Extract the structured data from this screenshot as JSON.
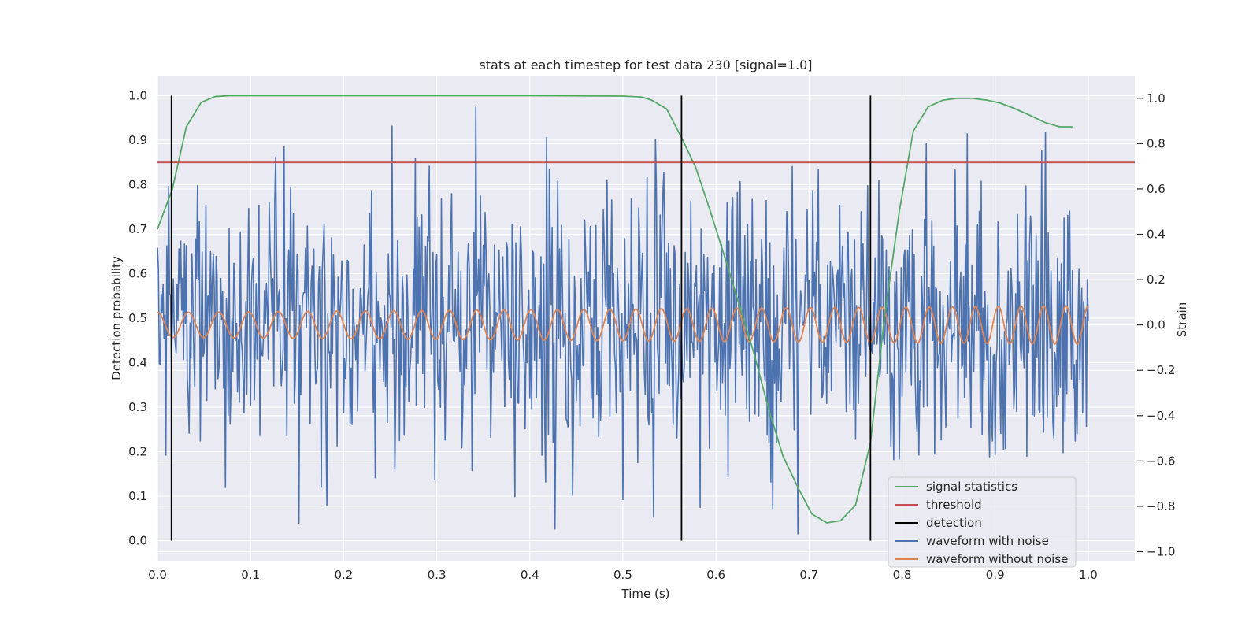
{
  "chart_data": {
    "type": "line",
    "title": "stats at each timestep for test data 230 [signal=1.0]",
    "xlabel": "Time (s)",
    "ylabel_left": "Detection probability",
    "ylabel_right": "Strain",
    "xlim": [
      0.0,
      1.05
    ],
    "ylim_left": [
      -0.045,
      1.045
    ],
    "ylim_right": [
      -1.04,
      1.1
    ],
    "x_ticks": [
      0.0,
      0.1,
      0.2,
      0.3,
      0.4,
      0.5,
      0.6,
      0.7,
      0.8,
      0.9,
      1.0
    ],
    "y_ticks_left": [
      0.0,
      0.1,
      0.2,
      0.3,
      0.4,
      0.5,
      0.6,
      0.7,
      0.8,
      0.9,
      1.0
    ],
    "y_ticks_right": [
      -1.0,
      -0.8,
      -0.6,
      -0.4,
      -0.2,
      0.0,
      0.2,
      0.4,
      0.6,
      0.8,
      1.0
    ],
    "y_tick_labels_right": [
      "−1.0",
      "−0.8",
      "−0.6",
      "−0.4",
      "−0.2",
      "0.0",
      "0.2",
      "0.4",
      "0.6",
      "0.8",
      "1.0"
    ],
    "grid": true,
    "legend_position": "lower-right",
    "series": [
      {
        "name": "signal statistics",
        "axis": "left",
        "color": "#55a868",
        "x": [
          0.0,
          0.016,
          0.031,
          0.047,
          0.062,
          0.078,
          0.2,
          0.3,
          0.4,
          0.5,
          0.52,
          0.531,
          0.547,
          0.562,
          0.578,
          0.594,
          0.609,
          0.625,
          0.641,
          0.656,
          0.672,
          0.688,
          0.703,
          0.719,
          0.734,
          0.75,
          0.766,
          0.781,
          0.797,
          0.812,
          0.828,
          0.844,
          0.859,
          0.875,
          0.891,
          0.906,
          0.922,
          0.938,
          0.953,
          0.969,
          0.984
        ],
        "values": [
          0.7,
          0.79,
          0.93,
          0.985,
          0.998,
          1.0,
          1.0,
          1.0,
          1.0,
          0.999,
          0.997,
          0.99,
          0.97,
          0.91,
          0.84,
          0.74,
          0.64,
          0.53,
          0.42,
          0.3,
          0.19,
          0.12,
          0.06,
          0.04,
          0.045,
          0.08,
          0.22,
          0.5,
          0.74,
          0.92,
          0.975,
          0.99,
          0.994,
          0.994,
          0.99,
          0.983,
          0.97,
          0.955,
          0.94,
          0.93,
          0.93
        ]
      },
      {
        "name": "threshold",
        "axis": "left",
        "color": "#c44e52",
        "x": [
          0.0,
          1.05
        ],
        "values": [
          0.85,
          0.85
        ]
      },
      {
        "name": "detection",
        "axis": "left",
        "color": "#000000",
        "x": [
          0.015,
          0.563,
          0.766
        ],
        "values": [
          1.0,
          1.0,
          1.0
        ]
      },
      {
        "name": "waveform with noise",
        "axis": "right",
        "color": "#4c72b0"
      },
      {
        "name": "waveform without noise",
        "axis": "right",
        "color": "#dd8452"
      }
    ]
  }
}
